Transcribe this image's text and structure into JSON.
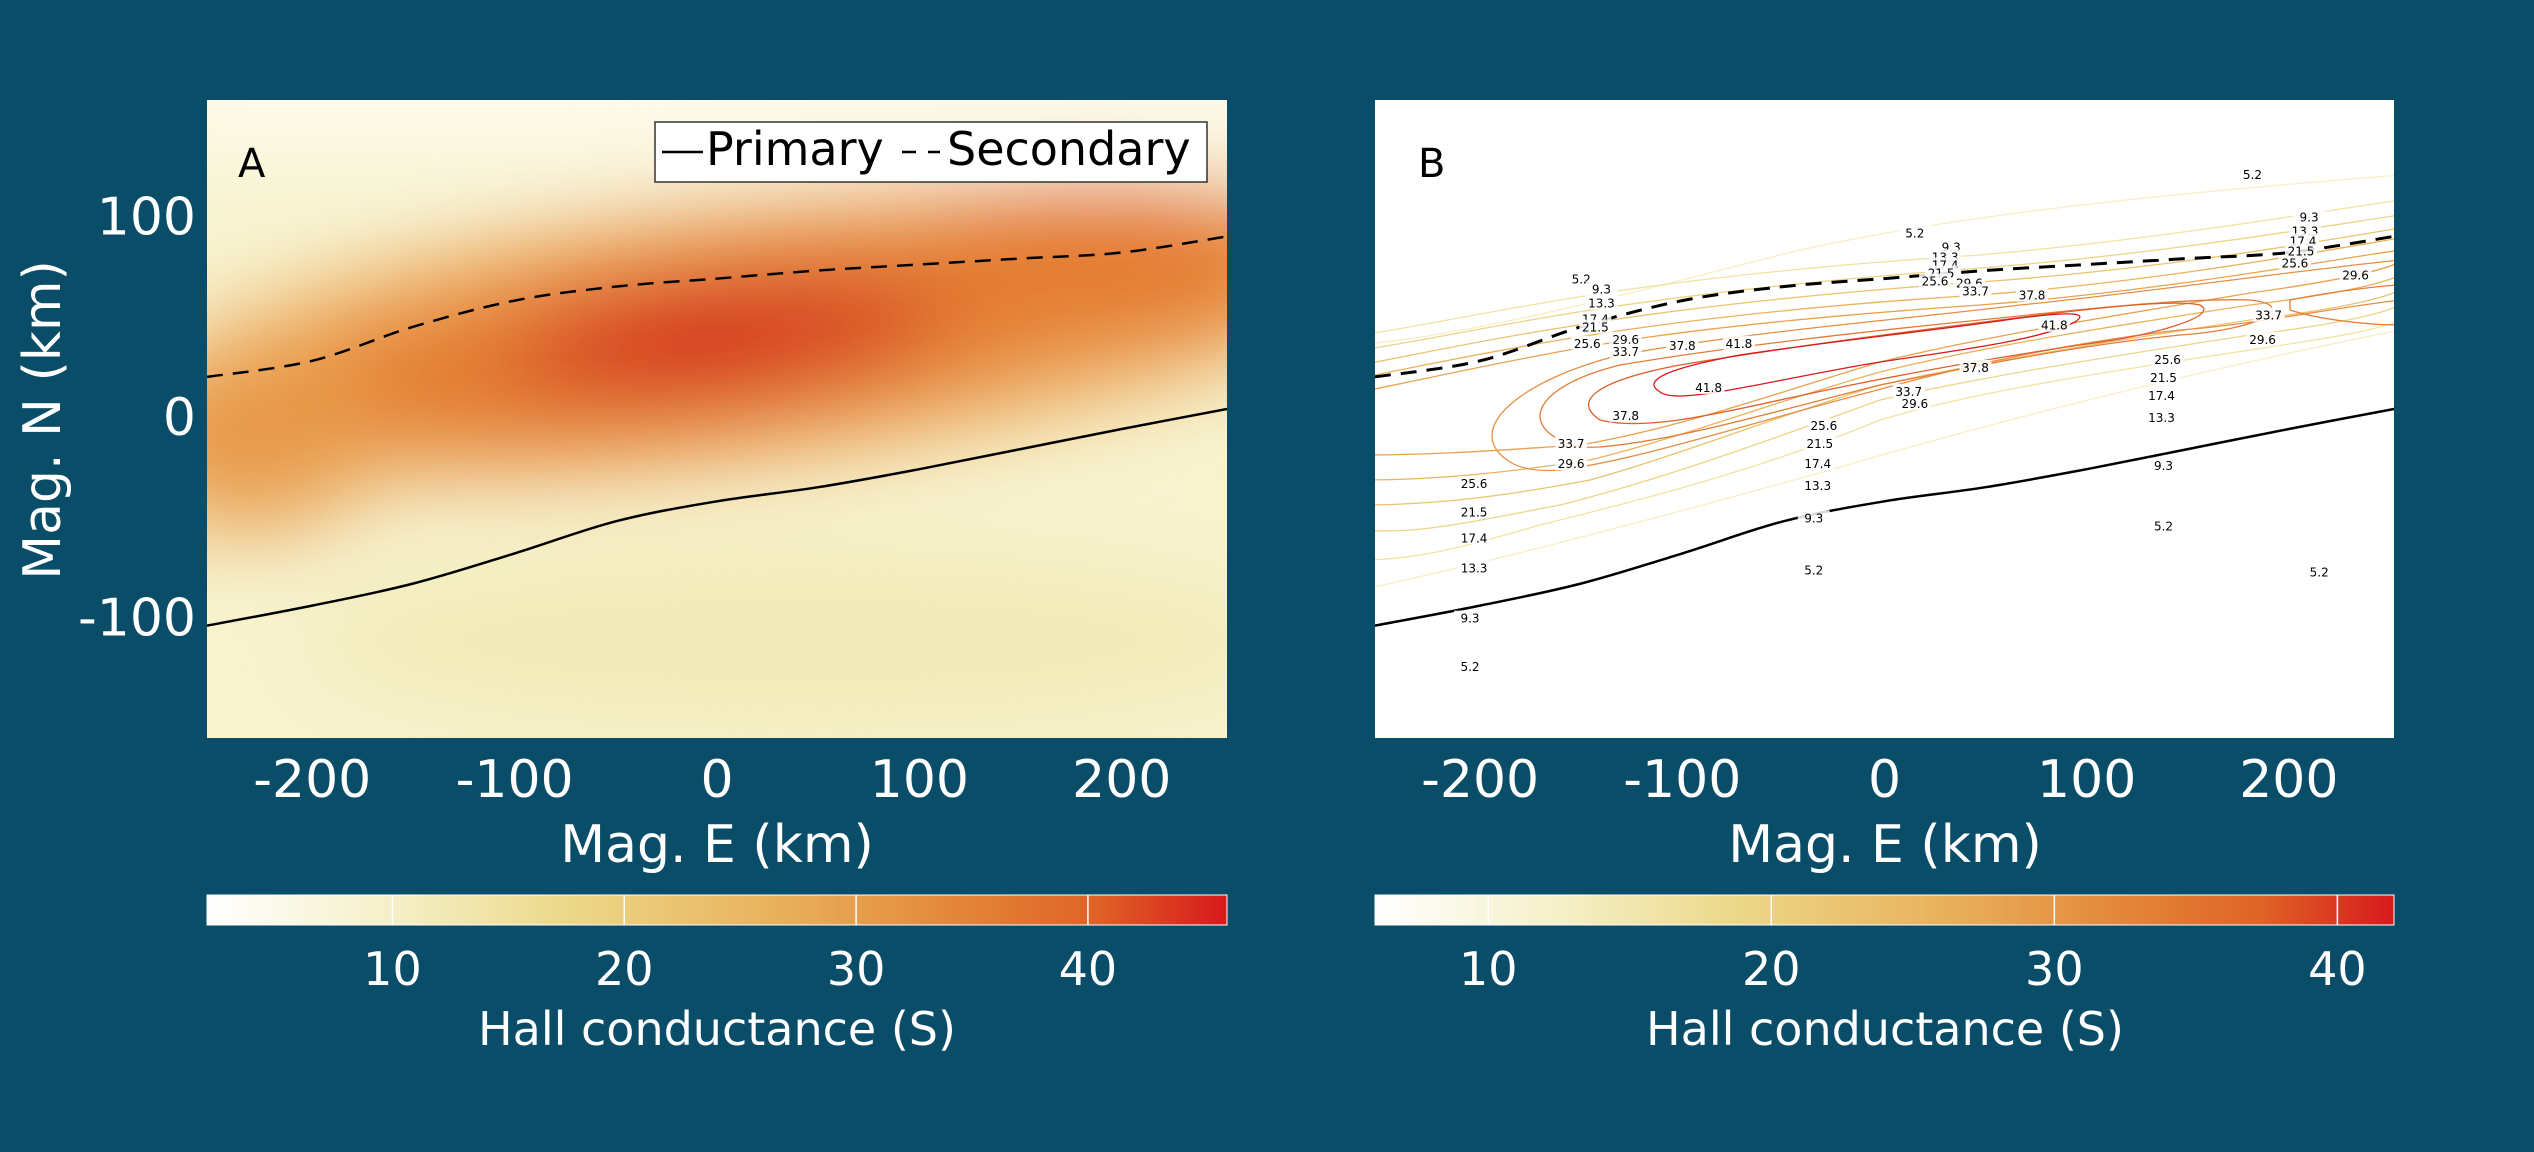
{
  "colors": {
    "background": "#0a4d68",
    "cmap": [
      "#ffffff",
      "#f5f0c8",
      "#ecd98a",
      "#e9b35e",
      "#e48a3c",
      "#df6326",
      "#d7191c"
    ]
  },
  "chart_data": [
    {
      "type": "heatmap",
      "panel_label": "A",
      "xlabel": "Mag. E (km)",
      "ylabel": "Mag. N (km)",
      "xlim": [
        -252,
        252
      ],
      "ylim": [
        -160,
        158
      ],
      "xticks": [
        -200,
        -100,
        0,
        100,
        200
      ],
      "yticks": [
        100,
        0,
        -100
      ],
      "legend": {
        "position": "top-right",
        "entries": [
          "Primary",
          "Secondary"
        ]
      },
      "colorbar": {
        "label": "Hall conductance (S)",
        "range": [
          2,
          46
        ],
        "ticks": [
          10,
          20,
          30,
          40
        ]
      },
      "series": [
        {
          "name": "Primary",
          "style": "solid",
          "x": [
            -252,
            -200,
            -150,
            -100,
            -50,
            0,
            50,
            100,
            150,
            200,
            252
          ],
          "y": [
            -104,
            -94,
            -83,
            -68,
            -52,
            -42,
            -35,
            -26,
            -16,
            -6,
            4
          ]
        },
        {
          "name": "Secondary",
          "style": "dashed",
          "x": [
            -252,
            -200,
            -150,
            -100,
            -50,
            0,
            50,
            100,
            150,
            200,
            252
          ],
          "y": [
            20,
            28,
            45,
            58,
            65,
            69,
            73,
            76,
            79,
            82,
            90
          ]
        }
      ]
    },
    {
      "type": "contour",
      "panel_label": "B",
      "xlabel": "Mag. E (km)",
      "xlim": [
        -252,
        252
      ],
      "ylim": [
        -160,
        158
      ],
      "xticks": [
        -200,
        -100,
        0,
        100,
        200
      ],
      "colorbar": {
        "label": "Hall conductance (S)",
        "range": [
          6,
          42
        ],
        "ticks": [
          10,
          20,
          30,
          40
        ]
      },
      "levels": [
        5.2,
        9.3,
        13.3,
        17.4,
        21.5,
        25.6,
        29.6,
        33.7,
        37.8,
        41.8
      ],
      "contour_labels": [
        {
          "text": "5.2",
          "x": -150,
          "y": 68
        },
        {
          "text": "9.3",
          "x": -140,
          "y": 63
        },
        {
          "text": "13.3",
          "x": -140,
          "y": 56
        },
        {
          "text": "17.4",
          "x": -143,
          "y": 48
        },
        {
          "text": "21.5",
          "x": -143,
          "y": 44
        },
        {
          "text": "25.6",
          "x": -147,
          "y": 36
        },
        {
          "text": "29.6",
          "x": -128,
          "y": 38
        },
        {
          "text": "33.7",
          "x": -128,
          "y": 32
        },
        {
          "text": "37.8",
          "x": -100,
          "y": 35
        },
        {
          "text": "41.8",
          "x": -72,
          "y": 36
        },
        {
          "text": "37.8",
          "x": -128,
          "y": 0
        },
        {
          "text": "33.7",
          "x": -155,
          "y": -14
        },
        {
          "text": "29.6",
          "x": -155,
          "y": -24
        },
        {
          "text": "25.6",
          "x": -203,
          "y": -34
        },
        {
          "text": "21.5",
          "x": -203,
          "y": -48
        },
        {
          "text": "17.4",
          "x": -203,
          "y": -61
        },
        {
          "text": "13.3",
          "x": -203,
          "y": -76
        },
        {
          "text": "9.3",
          "x": -205,
          "y": -101
        },
        {
          "text": "5.2",
          "x": -205,
          "y": -125
        },
        {
          "text": "41.8",
          "x": -87,
          "y": 14
        },
        {
          "text": "25.6",
          "x": -30,
          "y": -5
        },
        {
          "text": "21.5",
          "x": -32,
          "y": -14
        },
        {
          "text": "17.4",
          "x": -33,
          "y": -24
        },
        {
          "text": "13.3",
          "x": -33,
          "y": -35
        },
        {
          "text": "9.3",
          "x": -35,
          "y": -51
        },
        {
          "text": "5.2",
          "x": -35,
          "y": -77
        },
        {
          "text": "33.7",
          "x": 12,
          "y": 12
        },
        {
          "text": "29.6",
          "x": 15,
          "y": 6
        },
        {
          "text": "37.8",
          "x": 45,
          "y": 24
        },
        {
          "text": "5.2",
          "x": 15,
          "y": 91
        },
        {
          "text": "9.3",
          "x": 33,
          "y": 84
        },
        {
          "text": "13.3",
          "x": 30,
          "y": 79
        },
        {
          "text": "17.4",
          "x": 30,
          "y": 75
        },
        {
          "text": "21.5",
          "x": 28,
          "y": 71
        },
        {
          "text": "25.6",
          "x": 25,
          "y": 67
        },
        {
          "text": "29.6",
          "x": 42,
          "y": 66
        },
        {
          "text": "33.7",
          "x": 45,
          "y": 62
        },
        {
          "text": "37.8",
          "x": 73,
          "y": 60
        },
        {
          "text": "41.8",
          "x": 84,
          "y": 45
        },
        {
          "text": "25.6",
          "x": 140,
          "y": 28
        },
        {
          "text": "21.5",
          "x": 138,
          "y": 19
        },
        {
          "text": "17.4",
          "x": 137,
          "y": 10
        },
        {
          "text": "13.3",
          "x": 137,
          "y": -1
        },
        {
          "text": "9.3",
          "x": 138,
          "y": -25
        },
        {
          "text": "5.2",
          "x": 138,
          "y": -55
        },
        {
          "text": "33.7",
          "x": 190,
          "y": 50
        },
        {
          "text": "29.6",
          "x": 187,
          "y": 38
        },
        {
          "text": "5.2",
          "x": 182,
          "y": 120
        },
        {
          "text": "9.3",
          "x": 210,
          "y": 99
        },
        {
          "text": "13.3",
          "x": 208,
          "y": 92
        },
        {
          "text": "17.4",
          "x": 207,
          "y": 87
        },
        {
          "text": "21.5",
          "x": 206,
          "y": 82
        },
        {
          "text": "25.6",
          "x": 203,
          "y": 76
        },
        {
          "text": "29.6",
          "x": 233,
          "y": 70
        },
        {
          "text": "5.2",
          "x": 215,
          "y": -78
        }
      ],
      "series": [
        {
          "name": "Primary",
          "style": "solid",
          "x": [
            -252,
            -200,
            -150,
            -100,
            -50,
            0,
            50,
            100,
            150,
            200,
            252
          ],
          "y": [
            -104,
            -94,
            -83,
            -68,
            -52,
            -42,
            -35,
            -26,
            -16,
            -6,
            4
          ]
        },
        {
          "name": "Secondary",
          "style": "dashed",
          "x": [
            -252,
            -200,
            -150,
            -100,
            -50,
            0,
            50,
            100,
            150,
            200,
            252
          ],
          "y": [
            20,
            28,
            45,
            58,
            65,
            69,
            73,
            76,
            79,
            82,
            90
          ]
        }
      ]
    }
  ]
}
